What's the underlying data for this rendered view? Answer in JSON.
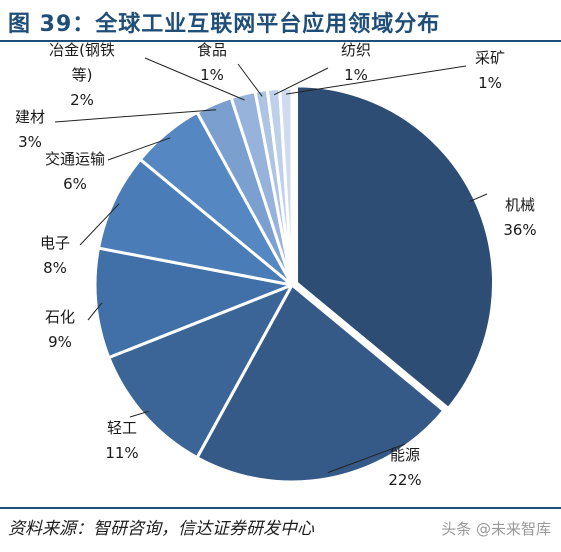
{
  "figure_title": "图 39：全球工业互联网平台应用领域分布",
  "source_text": "资料来源：智研咨询，信达证券研发中心",
  "watermark": "头条 @未来智库",
  "chart_data": {
    "type": "pie",
    "slices": [
      {
        "label": "机械",
        "value": 36,
        "color": "#2e4d74"
      },
      {
        "label": "能源",
        "value": 22,
        "color": "#355a88"
      },
      {
        "label": "轻工",
        "value": 11,
        "color": "#3b6597"
      },
      {
        "label": "石化",
        "value": 9,
        "color": "#416fa7"
      },
      {
        "label": "电子",
        "value": 8,
        "color": "#4a7cb8"
      },
      {
        "label": "交通运输",
        "value": 6,
        "color": "#5587c3"
      },
      {
        "label": "建材",
        "value": 3,
        "color": "#7b9fcf"
      },
      {
        "label": "冶金(钢铁等)",
        "value": 2,
        "color": "#97b3db"
      },
      {
        "label": "食品",
        "value": 1,
        "color": "#aec4e3"
      },
      {
        "label": "纺织",
        "value": 1,
        "color": "#bfd0ea"
      },
      {
        "label": "采矿",
        "value": 1,
        "color": "#cfdcef"
      }
    ],
    "labels": [
      {
        "lines": [
          "机械",
          "36%"
        ]
      },
      {
        "lines": [
          "能源",
          "22%"
        ]
      },
      {
        "lines": [
          "轻工",
          "11%"
        ]
      },
      {
        "lines": [
          "石化",
          "9%"
        ]
      },
      {
        "lines": [
          "电子",
          "8%"
        ]
      },
      {
        "lines": [
          "交通运输",
          "6%"
        ]
      },
      {
        "lines": [
          "建材",
          "3%"
        ]
      },
      {
        "lines": [
          "冶金(钢铁",
          "等)",
          "2%"
        ]
      },
      {
        "lines": [
          "食品",
          "1%"
        ]
      },
      {
        "lines": [
          "纺织",
          "1%"
        ]
      },
      {
        "lines": [
          "采矿",
          "1%"
        ]
      }
    ]
  }
}
